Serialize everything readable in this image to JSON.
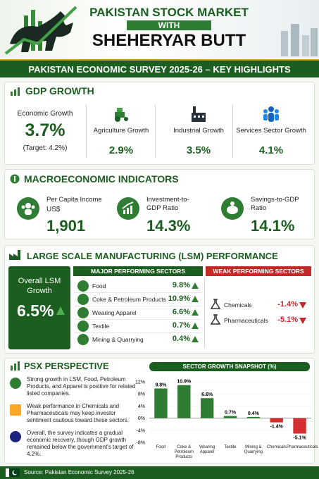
{
  "header": {
    "line1": "PAKISTAN STOCK MARKET",
    "line2": "WITH",
    "line3": "SHEHERYAR BUTT"
  },
  "banner": "PAKISTAN ECONOMIC SURVEY 2025-26 – KEY HIGHLIGHTS",
  "gdp": {
    "title": "GDP GROWTH",
    "main": {
      "label": "Economic Growth",
      "value": "3.7%",
      "target": "(Target: 4.2%)"
    },
    "items": [
      {
        "label": "Agriculture Growth",
        "value": "2.9%"
      },
      {
        "label": "Industrial Growth",
        "value": "3.5%"
      },
      {
        "label": "Services Sector Growth",
        "value": "4.1%"
      }
    ]
  },
  "macro": {
    "title": "MACROECONOMIC INDICATORS",
    "items": [
      {
        "label": "Per Capita Income",
        "unit": "US$",
        "value": "1,901"
      },
      {
        "label": "Investment-to-GDP Ratio",
        "value": "14.3%"
      },
      {
        "label": "Savings-to-GDP Ratio",
        "value": "14.1%"
      }
    ]
  },
  "lsm": {
    "title": "LARGE SCALE MANUFACTURING (LSM) PERFORMANCE",
    "overall": {
      "label": "Overall LSM Growth",
      "value": "6.5%"
    },
    "major_title": "MAJOR PERFORMING SECTORS",
    "major": [
      {
        "name": "Food",
        "value": "9.8%"
      },
      {
        "name": "Coke & Petroleum Products",
        "value": "10.9%"
      },
      {
        "name": "Wearing Apparel",
        "value": "6.6%"
      },
      {
        "name": "Textile",
        "value": "0.7%"
      },
      {
        "name": "Mining & Quarrying",
        "value": "0.4%"
      }
    ],
    "weak_title": "WEAK PERFORMING SECTORS",
    "weak": [
      {
        "name": "Chemicals",
        "value": "-1.4%"
      },
      {
        "name": "Pharmaceuticals",
        "value": "-5.1%"
      }
    ]
  },
  "psx": {
    "title": "PSX PERSPECTIVE",
    "points": [
      "Strong growth in LSM, Food, Petroleum Products, and Apparel is positive for related listed companies.",
      "Weak performance in Chemicals and Pharmaceuticals may keep investor sentiment cautious toward these sectors.",
      "Overall, the survey indicates a gradual economic recovery, though GDP growth remained below the government's target of 4.2%."
    ]
  },
  "chart_data": {
    "type": "bar",
    "title": "SECTOR GROWTH SNAPSHOT (%)",
    "categories": [
      "Food",
      "Coke & Petroleum Products",
      "Wearing Apparel",
      "Textile",
      "Mining & Quarrying",
      "Chemicals",
      "Pharmaceuticals"
    ],
    "values": [
      9.8,
      10.9,
      6.6,
      0.7,
      0.4,
      -1.4,
      -5.1
    ],
    "value_labels": [
      "9.8%",
      "10.9%",
      "6.6%",
      "0.7%",
      "0.4%",
      "-1.4%",
      "-5.1%"
    ],
    "color": "#2e7d32",
    "negative_color": "#d32f2f",
    "ylim": [
      -8,
      12
    ],
    "yticks": [
      {
        "value": 12,
        "label": "12%"
      },
      {
        "value": 8,
        "label": "8%"
      },
      {
        "value": 4,
        "label": "4%"
      },
      {
        "value": 0,
        "label": "0%"
      },
      {
        "value": -4,
        "label": "-4%"
      },
      {
        "value": -8,
        "label": "-8%"
      }
    ]
  },
  "source": "Source: Pakistan Economic Survey 2025-26"
}
